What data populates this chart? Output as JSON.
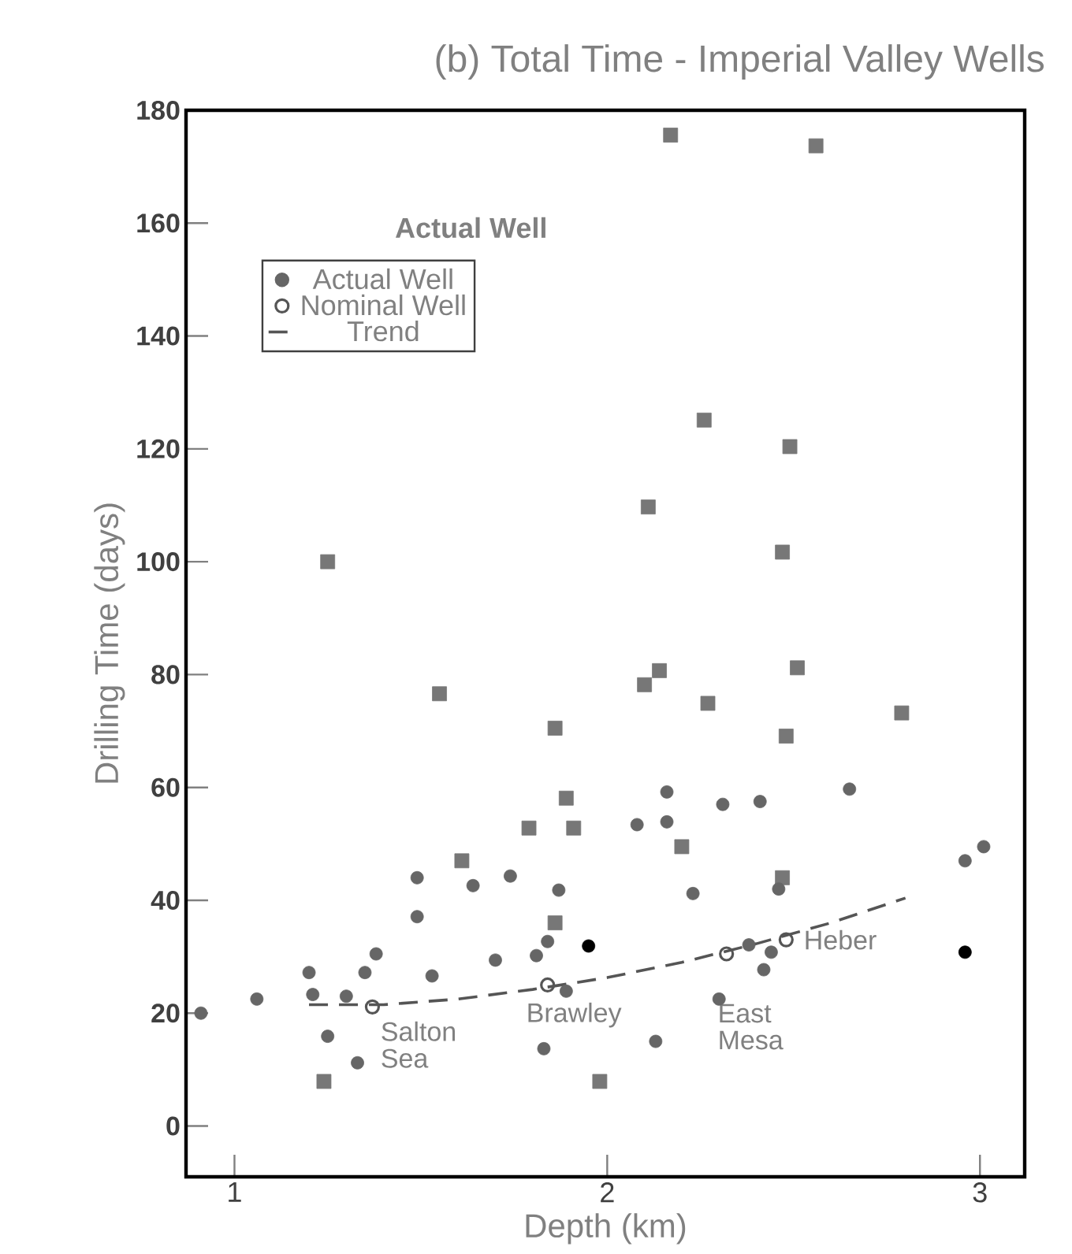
{
  "chart_data": {
    "type": "scatter",
    "title": "(b)  Total Time - Imperial Valley Wells",
    "xlabel": "Depth (km)",
    "ylabel": "Drilling Time (days)",
    "legend_title": "Actual Well",
    "legend": "top left",
    "grid": false,
    "xlim": [
      0.87,
      3.12
    ],
    "ylim": [
      -9,
      180
    ],
    "xticks": [
      1,
      2,
      3
    ],
    "yticks": [
      0,
      20,
      40,
      60,
      80,
      100,
      120,
      140,
      160,
      180
    ],
    "series": [
      {
        "color": "#777777",
        "marker": "square",
        "x": [
          1.25,
          2.17,
          2.56,
          2.26,
          2.49,
          2.11,
          2.47,
          1.55,
          1.86,
          1.89,
          1.79,
          1.91,
          1.61,
          1.86,
          1.24,
          1.98,
          2.14,
          2.1,
          2.51,
          2.27,
          2.79,
          2.48,
          2.2,
          2.47
        ],
        "values": [
          100,
          175.6,
          173.7,
          125.1,
          120.4,
          109.7,
          101.7,
          76.6,
          70.5,
          58.1,
          52.8,
          52.8,
          47.0,
          36.0,
          7.9,
          7.9,
          80.7,
          78.2,
          81.2,
          74.9,
          73.2,
          69.1,
          49.5,
          44.0
        ]
      },
      {
        "name": "Actual Well",
        "color": "#666666",
        "x": [
          1.49,
          1.64,
          1.74,
          1.87,
          1.49,
          1.38,
          1.2,
          1.35,
          1.53,
          1.7,
          1.81,
          1.84,
          1.06,
          1.21,
          1.3,
          1.89,
          1.25,
          1.33,
          1.83,
          0.91,
          2.08,
          2.16,
          2.16,
          2.31,
          2.41,
          2.65,
          2.23,
          2.46,
          2.96,
          3.01,
          2.42,
          2.3,
          2.13,
          2.38,
          2.44
        ],
        "values": [
          44.0,
          42.6,
          44.3,
          41.8,
          37.1,
          30.5,
          27.2,
          27.2,
          26.6,
          29.4,
          30.2,
          32.7,
          22.5,
          23.3,
          23.0,
          23.9,
          15.9,
          11.2,
          13.7,
          20.0,
          53.4,
          59.2,
          53.9,
          57.0,
          57.5,
          59.7,
          41.2,
          42.0,
          47.0,
          49.5,
          27.7,
          22.5,
          15.0,
          32.1,
          30.8
        ]
      },
      {
        "color": "#000000",
        "x": [
          1.95,
          2.96
        ],
        "values": [
          31.9,
          30.8
        ]
      },
      {
        "name": "Nominal Well",
        "color": "#555555",
        "marker": "circle",
        "x": [
          1.37,
          1.84,
          2.32,
          2.48
        ],
        "values": [
          21.1,
          25.0,
          30.5,
          33.0
        ]
      },
      {
        "name": "Trend",
        "type": "line",
        "line_style": "dashed",
        "marker": "none",
        "color": "#555555",
        "x": [
          1.2,
          1.4,
          1.6,
          1.8,
          2.0,
          2.2,
          2.4,
          2.6,
          2.8
        ],
        "values": [
          21.5,
          21.5,
          22.5,
          24.2,
          26.3,
          29.0,
          32.3,
          36.0,
          40.4
        ]
      }
    ],
    "annotations": [
      {
        "text": "Salton Sea",
        "x": 1.37,
        "y": 21.1
      },
      {
        "text": "Brawley",
        "x": 1.84,
        "y": 25.0
      },
      {
        "text": "East Mesa",
        "x": 2.3,
        "y": 22.5
      },
      {
        "text": "Heber",
        "x": 2.48,
        "y": 33.0
      }
    ]
  }
}
